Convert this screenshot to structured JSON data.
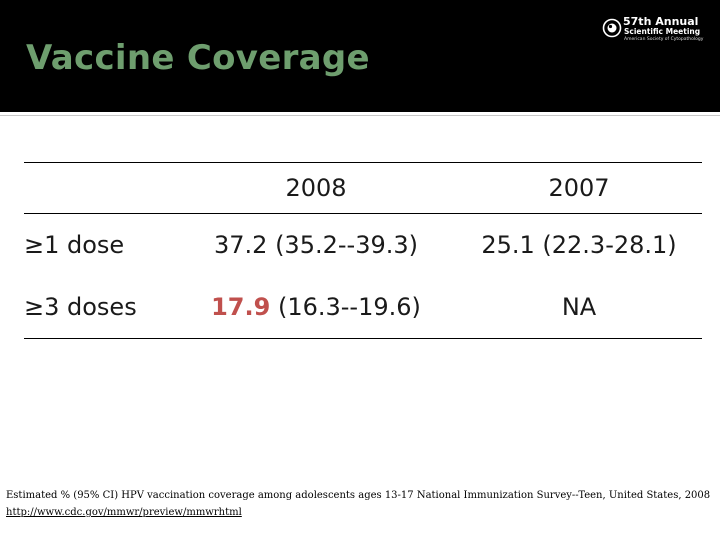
{
  "header": {
    "title": "Vaccine Coverage",
    "logo": {
      "line1": "57th Annual",
      "line2": "Scientific Meeting",
      "line3": "American Society of Cytopathology"
    }
  },
  "table": {
    "columns": [
      "",
      "2008",
      "2007"
    ],
    "rows": [
      {
        "label": "≥1 dose",
        "y2008": "37.2 (35.2--39.3)",
        "y2007": "25.1 (22.3-28.1)"
      },
      {
        "label": "≥3 doses",
        "y2008_value": "17.9",
        "y2008_ci": "(16.3--19.6)",
        "y2007": "NA"
      }
    ]
  },
  "footnote": "Estimated % (95% CI) HPV vaccination coverage among adolescents ages 13-17 National Immunization Survey--Teen, United States, 2008",
  "link": "http://www.cdc.gov/mmwr/preview/mmwrhtml",
  "colors": {
    "header_bg": "#000000",
    "title": "#6e9e6e",
    "highlight": "#c0504d"
  }
}
